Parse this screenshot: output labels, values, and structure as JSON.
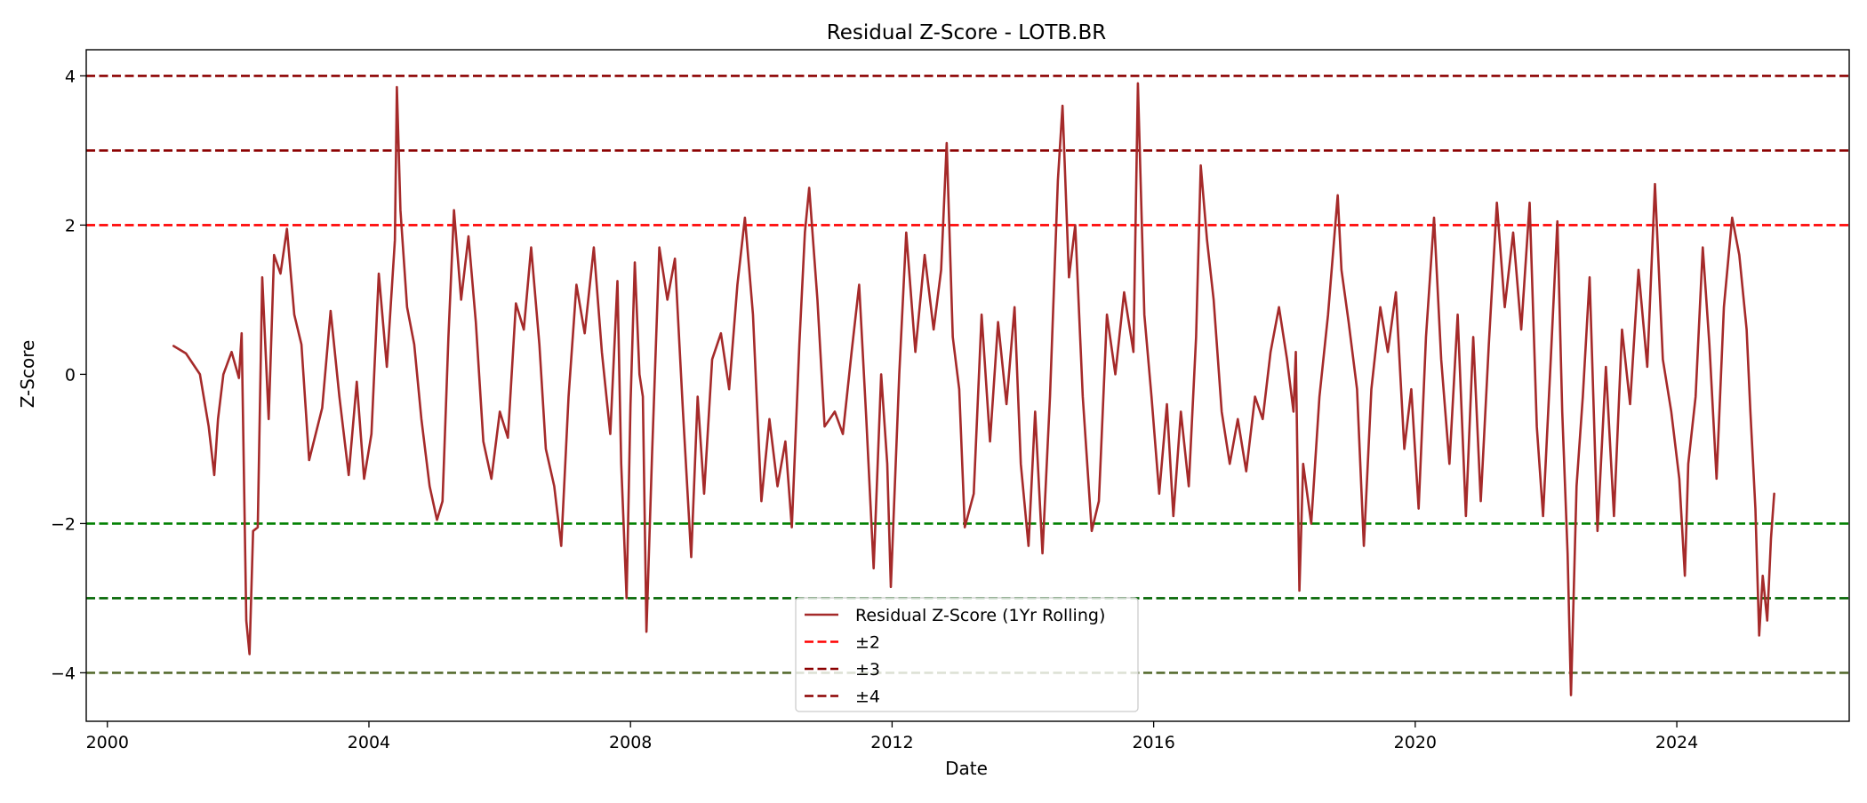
{
  "chart_data": {
    "type": "line",
    "title": "Residual Z-Score - LOTB.BR",
    "xlabel": "Date",
    "ylabel": "Z-Score",
    "x_range": [
      "1999-09-05",
      "2026-08-21"
    ],
    "ylim": [
      -4.65,
      4.35
    ],
    "x_ticks": [
      "2000",
      "2004",
      "2008",
      "2012",
      "2016",
      "2020",
      "2024"
    ],
    "y_ticks": [
      4,
      2,
      0,
      -2,
      -4
    ],
    "y_tick_labels": [
      "4",
      "2",
      "0",
      "−2",
      "−4"
    ],
    "grid": false,
    "legend_position": "lower center",
    "series": [
      {
        "name": "Residual Z-Score (1Yr Rolling)",
        "color": "#a52a2a",
        "points": [
          [
            "2001-01-05",
            0.38
          ],
          [
            "2001-03-15",
            0.28
          ],
          [
            "2001-06-01",
            0.0
          ],
          [
            "2001-07-20",
            -0.7
          ],
          [
            "2001-08-20",
            -1.35
          ],
          [
            "2001-09-10",
            -0.6
          ],
          [
            "2001-10-10",
            0.0
          ],
          [
            "2001-11-25",
            0.3
          ],
          [
            "2002-01-05",
            -0.05
          ],
          [
            "2002-01-20",
            0.55
          ],
          [
            "2002-02-15",
            -3.3
          ],
          [
            "2002-03-05",
            -3.75
          ],
          [
            "2002-03-25",
            -2.1
          ],
          [
            "2002-04-20",
            -2.05
          ],
          [
            "2002-05-15",
            1.3
          ],
          [
            "2002-06-20",
            -0.6
          ],
          [
            "2002-07-20",
            1.6
          ],
          [
            "2002-08-25",
            1.35
          ],
          [
            "2002-09-30",
            1.95
          ],
          [
            "2002-11-10",
            0.8
          ],
          [
            "2002-12-20",
            0.4
          ],
          [
            "2003-02-01",
            -1.15
          ],
          [
            "2003-04-15",
            -0.45
          ],
          [
            "2003-06-01",
            0.85
          ],
          [
            "2003-07-20",
            -0.3
          ],
          [
            "2003-09-10",
            -1.35
          ],
          [
            "2003-10-25",
            -0.1
          ],
          [
            "2003-12-05",
            -1.4
          ],
          [
            "2004-01-15",
            -0.8
          ],
          [
            "2004-02-25",
            1.35
          ],
          [
            "2004-04-10",
            0.1
          ],
          [
            "2004-05-25",
            1.8
          ],
          [
            "2004-06-05",
            3.85
          ],
          [
            "2004-06-25",
            2.2
          ],
          [
            "2004-08-01",
            0.9
          ],
          [
            "2004-09-10",
            0.4
          ],
          [
            "2004-10-20",
            -0.6
          ],
          [
            "2004-12-05",
            -1.5
          ],
          [
            "2005-01-15",
            -1.95
          ],
          [
            "2005-02-15",
            -1.7
          ],
          [
            "2005-03-20",
            0.5
          ],
          [
            "2005-04-20",
            2.2
          ],
          [
            "2005-05-30",
            1.0
          ],
          [
            "2005-07-10",
            1.85
          ],
          [
            "2005-08-20",
            0.7
          ],
          [
            "2005-10-01",
            -0.9
          ],
          [
            "2005-11-15",
            -1.4
          ],
          [
            "2006-01-01",
            -0.5
          ],
          [
            "2006-02-15",
            -0.85
          ],
          [
            "2006-04-01",
            0.95
          ],
          [
            "2006-05-15",
            0.6
          ],
          [
            "2006-06-25",
            1.7
          ],
          [
            "2006-08-10",
            0.4
          ],
          [
            "2006-09-15",
            -1.0
          ],
          [
            "2006-11-01",
            -1.5
          ],
          [
            "2006-12-10",
            -2.3
          ],
          [
            "2007-01-20",
            -0.3
          ],
          [
            "2007-03-05",
            1.2
          ],
          [
            "2007-04-20",
            0.55
          ],
          [
            "2007-06-10",
            1.7
          ],
          [
            "2007-07-25",
            0.3
          ],
          [
            "2007-09-10",
            -0.8
          ],
          [
            "2007-10-20",
            1.25
          ],
          [
            "2007-11-10",
            -1.2
          ],
          [
            "2007-12-10",
            -3.0
          ],
          [
            "2008-01-01",
            -0.4
          ],
          [
            "2008-01-25",
            1.5
          ],
          [
            "2008-02-20",
            0.0
          ],
          [
            "2008-03-10",
            -0.3
          ],
          [
            "2008-03-30",
            -3.45
          ],
          [
            "2008-04-30",
            -1.1
          ],
          [
            "2008-06-10",
            1.7
          ],
          [
            "2008-07-25",
            1.0
          ],
          [
            "2008-09-05",
            1.55
          ],
          [
            "2008-10-20",
            -0.5
          ],
          [
            "2008-12-05",
            -2.45
          ],
          [
            "2009-01-10",
            -0.3
          ],
          [
            "2009-02-15",
            -1.6
          ],
          [
            "2009-04-01",
            0.2
          ],
          [
            "2009-05-20",
            0.55
          ],
          [
            "2009-07-05",
            -0.2
          ],
          [
            "2009-08-20",
            1.2
          ],
          [
            "2009-10-01",
            2.1
          ],
          [
            "2009-11-15",
            0.8
          ],
          [
            "2010-01-01",
            -1.7
          ],
          [
            "2010-02-15",
            -0.6
          ],
          [
            "2010-04-01",
            -1.5
          ],
          [
            "2010-05-15",
            -0.9
          ],
          [
            "2010-06-20",
            -2.05
          ],
          [
            "2010-08-01",
            0.4
          ],
          [
            "2010-09-01",
            1.9
          ],
          [
            "2010-09-25",
            2.5
          ],
          [
            "2010-11-10",
            1.0
          ],
          [
            "2010-12-20",
            -0.7
          ],
          [
            "2011-02-15",
            -0.5
          ],
          [
            "2011-04-01",
            -0.8
          ],
          [
            "2011-05-20",
            0.3
          ],
          [
            "2011-07-01",
            1.2
          ],
          [
            "2011-08-10",
            -0.6
          ],
          [
            "2011-09-20",
            -2.6
          ],
          [
            "2011-11-01",
            0.0
          ],
          [
            "2011-12-05",
            -1.2
          ],
          [
            "2011-12-25",
            -2.85
          ],
          [
            "2012-02-10",
            0.0
          ],
          [
            "2012-03-20",
            1.9
          ],
          [
            "2012-05-10",
            0.3
          ],
          [
            "2012-07-01",
            1.6
          ],
          [
            "2012-08-20",
            0.6
          ],
          [
            "2012-10-01",
            1.4
          ],
          [
            "2012-11-01",
            3.1
          ],
          [
            "2012-12-05",
            0.5
          ],
          [
            "2013-01-10",
            -0.2
          ],
          [
            "2013-02-10",
            -2.05
          ],
          [
            "2013-04-01",
            -1.6
          ],
          [
            "2013-05-15",
            0.8
          ],
          [
            "2013-07-01",
            -0.9
          ],
          [
            "2013-08-15",
            0.7
          ],
          [
            "2013-10-01",
            -0.4
          ],
          [
            "2013-11-15",
            0.9
          ],
          [
            "2013-12-20",
            -1.2
          ],
          [
            "2014-02-01",
            -2.3
          ],
          [
            "2014-03-10",
            -0.5
          ],
          [
            "2014-04-20",
            -2.4
          ],
          [
            "2014-06-01",
            -0.3
          ],
          [
            "2014-07-15",
            2.6
          ],
          [
            "2014-08-10",
            3.6
          ],
          [
            "2014-09-15",
            1.3
          ],
          [
            "2014-10-20",
            2.0
          ],
          [
            "2014-12-01",
            -0.3
          ],
          [
            "2015-01-20",
            -2.1
          ],
          [
            "2015-03-01",
            -1.7
          ],
          [
            "2015-04-15",
            0.8
          ],
          [
            "2015-06-01",
            0.0
          ],
          [
            "2015-07-20",
            1.1
          ],
          [
            "2015-09-10",
            0.3
          ],
          [
            "2015-10-05",
            3.9
          ],
          [
            "2015-11-10",
            0.8
          ],
          [
            "2015-12-20",
            -0.3
          ],
          [
            "2016-02-01",
            -1.6
          ],
          [
            "2016-03-15",
            -0.4
          ],
          [
            "2016-04-20",
            -1.9
          ],
          [
            "2016-06-01",
            -0.5
          ],
          [
            "2016-07-15",
            -1.5
          ],
          [
            "2016-08-25",
            0.5
          ],
          [
            "2016-09-20",
            2.8
          ],
          [
            "2016-10-25",
            1.8
          ],
          [
            "2016-12-01",
            1.0
          ],
          [
            "2017-01-15",
            -0.5
          ],
          [
            "2017-03-01",
            -1.2
          ],
          [
            "2017-04-15",
            -0.6
          ],
          [
            "2017-06-01",
            -1.3
          ],
          [
            "2017-07-20",
            -0.3
          ],
          [
            "2017-09-01",
            -0.6
          ],
          [
            "2017-10-15",
            0.3
          ],
          [
            "2017-12-01",
            0.9
          ],
          [
            "2018-01-15",
            0.2
          ],
          [
            "2018-02-20",
            -0.5
          ],
          [
            "2018-03-05",
            0.3
          ],
          [
            "2018-03-25",
            -2.9
          ],
          [
            "2018-04-15",
            -1.2
          ],
          [
            "2018-05-30",
            -2.0
          ],
          [
            "2018-07-15",
            -0.3
          ],
          [
            "2018-09-01",
            0.8
          ],
          [
            "2018-10-25",
            2.4
          ],
          [
            "2018-11-15",
            1.4
          ],
          [
            "2018-12-25",
            0.7
          ],
          [
            "2019-02-10",
            -0.2
          ],
          [
            "2019-03-20",
            -2.3
          ],
          [
            "2019-05-01",
            -0.2
          ],
          [
            "2019-06-20",
            0.9
          ],
          [
            "2019-08-01",
            0.3
          ],
          [
            "2019-09-15",
            1.1
          ],
          [
            "2019-11-01",
            -1.0
          ],
          [
            "2019-12-10",
            -0.2
          ],
          [
            "2020-01-20",
            -1.8
          ],
          [
            "2020-03-01",
            0.5
          ],
          [
            "2020-04-15",
            2.1
          ],
          [
            "2020-05-25",
            0.2
          ],
          [
            "2020-07-10",
            -1.2
          ],
          [
            "2020-08-25",
            0.8
          ],
          [
            "2020-10-10",
            -1.9
          ],
          [
            "2020-11-20",
            0.5
          ],
          [
            "2021-01-01",
            -1.7
          ],
          [
            "2021-02-15",
            0.4
          ],
          [
            "2021-04-01",
            2.3
          ],
          [
            "2021-05-15",
            0.9
          ],
          [
            "2021-07-01",
            1.9
          ],
          [
            "2021-08-15",
            0.6
          ],
          [
            "2021-10-01",
            2.3
          ],
          [
            "2021-11-10",
            -0.7
          ],
          [
            "2021-12-15",
            -1.9
          ],
          [
            "2022-01-25",
            0.1
          ],
          [
            "2022-03-05",
            2.05
          ],
          [
            "2022-04-01",
            -0.5
          ],
          [
            "2022-05-01",
            -2.4
          ],
          [
            "2022-05-20",
            -4.3
          ],
          [
            "2022-06-20",
            -1.5
          ],
          [
            "2022-07-25",
            -0.3
          ],
          [
            "2022-09-01",
            1.3
          ],
          [
            "2022-10-15",
            -2.1
          ],
          [
            "2022-12-01",
            0.1
          ],
          [
            "2023-01-15",
            -1.9
          ],
          [
            "2023-03-01",
            0.6
          ],
          [
            "2023-04-15",
            -0.4
          ],
          [
            "2023-06-01",
            1.4
          ],
          [
            "2023-07-20",
            0.1
          ],
          [
            "2023-09-01",
            2.55
          ],
          [
            "2023-10-15",
            0.2
          ],
          [
            "2023-12-01",
            -0.5
          ],
          [
            "2024-01-15",
            -1.4
          ],
          [
            "2024-02-15",
            -2.7
          ],
          [
            "2024-03-05",
            -1.2
          ],
          [
            "2024-04-15",
            -0.3
          ],
          [
            "2024-05-25",
            1.7
          ],
          [
            "2024-07-01",
            0.4
          ],
          [
            "2024-08-10",
            -1.4
          ],
          [
            "2024-09-20",
            0.9
          ],
          [
            "2024-11-05",
            2.1
          ],
          [
            "2024-12-15",
            1.6
          ],
          [
            "2025-01-25",
            0.6
          ],
          [
            "2025-02-15",
            -0.5
          ],
          [
            "2025-03-15",
            -1.8
          ],
          [
            "2025-04-05",
            -3.5
          ],
          [
            "2025-04-25",
            -2.7
          ],
          [
            "2025-05-20",
            -3.3
          ],
          [
            "2025-06-10",
            -2.2
          ],
          [
            "2025-06-28",
            -1.6
          ]
        ]
      }
    ],
    "reference_lines": [
      {
        "label": "±2",
        "values": [
          2,
          -2
        ],
        "colors": [
          "#ff0000",
          "#008000"
        ]
      },
      {
        "label": "±3",
        "values": [
          3,
          -3
        ],
        "colors": [
          "#8b0000",
          "#006400"
        ]
      },
      {
        "label": "±4",
        "values": [
          4,
          -4
        ],
        "colors": [
          "#8b0000",
          "#556b2f"
        ]
      }
    ],
    "legend": {
      "entries": [
        {
          "label": "Residual Z-Score (1Yr Rolling)",
          "color": "#a52a2a",
          "style": "solid"
        },
        {
          "label": "±2",
          "color": "#ff0000",
          "style": "dashed"
        },
        {
          "label": "±3",
          "color": "#8b0000",
          "style": "dashed"
        },
        {
          "label": "±4",
          "color": "#8b0000",
          "style": "dashed"
        }
      ]
    }
  }
}
